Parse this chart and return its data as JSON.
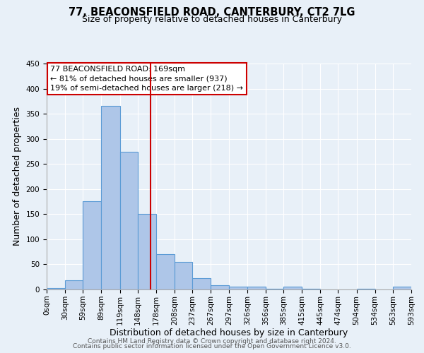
{
  "title": "77, BEACONSFIELD ROAD, CANTERBURY, CT2 7LG",
  "subtitle": "Size of property relative to detached houses in Canterbury",
  "xlabel": "Distribution of detached houses by size in Canterbury",
  "ylabel": "Number of detached properties",
  "bin_labels": [
    "0sqm",
    "30sqm",
    "59sqm",
    "89sqm",
    "119sqm",
    "148sqm",
    "178sqm",
    "208sqm",
    "237sqm",
    "267sqm",
    "297sqm",
    "326sqm",
    "356sqm",
    "385sqm",
    "415sqm",
    "445sqm",
    "474sqm",
    "504sqm",
    "534sqm",
    "563sqm",
    "593sqm"
  ],
  "bar_heights": [
    3,
    18,
    176,
    365,
    274,
    151,
    70,
    55,
    23,
    9,
    6,
    6,
    1,
    5,
    2,
    0,
    0,
    2,
    0,
    5
  ],
  "bin_edges": [
    0,
    30,
    59,
    89,
    119,
    148,
    178,
    208,
    237,
    267,
    297,
    326,
    356,
    385,
    415,
    445,
    474,
    504,
    534,
    563,
    593
  ],
  "bar_color": "#aec6e8",
  "bar_edgecolor": "#5b9bd5",
  "vline_x": 169,
  "vline_color": "#cc0000",
  "ylim": [
    0,
    450
  ],
  "yticks": [
    0,
    50,
    100,
    150,
    200,
    250,
    300,
    350,
    400,
    450
  ],
  "annotation_title": "77 BEACONSFIELD ROAD: 169sqm",
  "annotation_line1": "← 81% of detached houses are smaller (937)",
  "annotation_line2": "19% of semi-detached houses are larger (218) →",
  "annotation_box_color": "#ffffff",
  "annotation_box_edgecolor": "#cc0000",
  "footer1": "Contains HM Land Registry data © Crown copyright and database right 2024.",
  "footer2": "Contains public sector information licensed under the Open Government Licence v3.0.",
  "background_color": "#e8f0f8",
  "plot_background": "#e8f0f8",
  "grid_color": "#ffffff",
  "title_fontsize": 10.5,
  "subtitle_fontsize": 9.0,
  "axis_label_fontsize": 9.0,
  "tick_fontsize": 7.5,
  "footer_fontsize": 6.5,
  "annotation_fontsize": 8.0
}
